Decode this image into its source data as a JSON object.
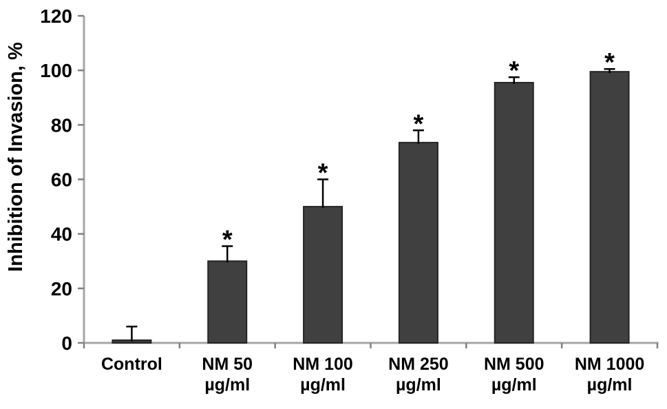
{
  "chart_data": {
    "type": "bar",
    "title": "",
    "xlabel": "",
    "ylabel": "Inhibition of Invasion, %",
    "categories": [
      "Control",
      "NM 50 µg/ml",
      "NM 100 µg/ml",
      "NM 250 µg/ml",
      "NM 500 µg/ml",
      "NM 1000 µg/ml"
    ],
    "category_lines": [
      [
        "Control"
      ],
      [
        "NM 50",
        "µg/ml"
      ],
      [
        "NM 100",
        "µg/ml"
      ],
      [
        "NM 250",
        "µg/ml"
      ],
      [
        "NM 500",
        "µg/ml"
      ],
      [
        "NM 1000",
        "µg/ml"
      ]
    ],
    "values": [
      1,
      30,
      50,
      73.5,
      95.5,
      99.5
    ],
    "errors_upper": [
      5,
      5.5,
      10,
      4.5,
      2,
      1
    ],
    "significant": [
      false,
      true,
      true,
      true,
      true,
      true
    ],
    "significance_marker": "*",
    "ylim": [
      0,
      120
    ],
    "yticks": [
      0,
      20,
      40,
      60,
      80,
      100,
      120
    ],
    "grid": false,
    "legend": "none",
    "colors": {
      "bar_fill": "#404040",
      "bar_border": "#242424",
      "axis_line": "#a6a6a6",
      "tick_mark": "#808080",
      "error_bar": "#000000",
      "text": "#000000",
      "background": "#ffffff"
    }
  }
}
